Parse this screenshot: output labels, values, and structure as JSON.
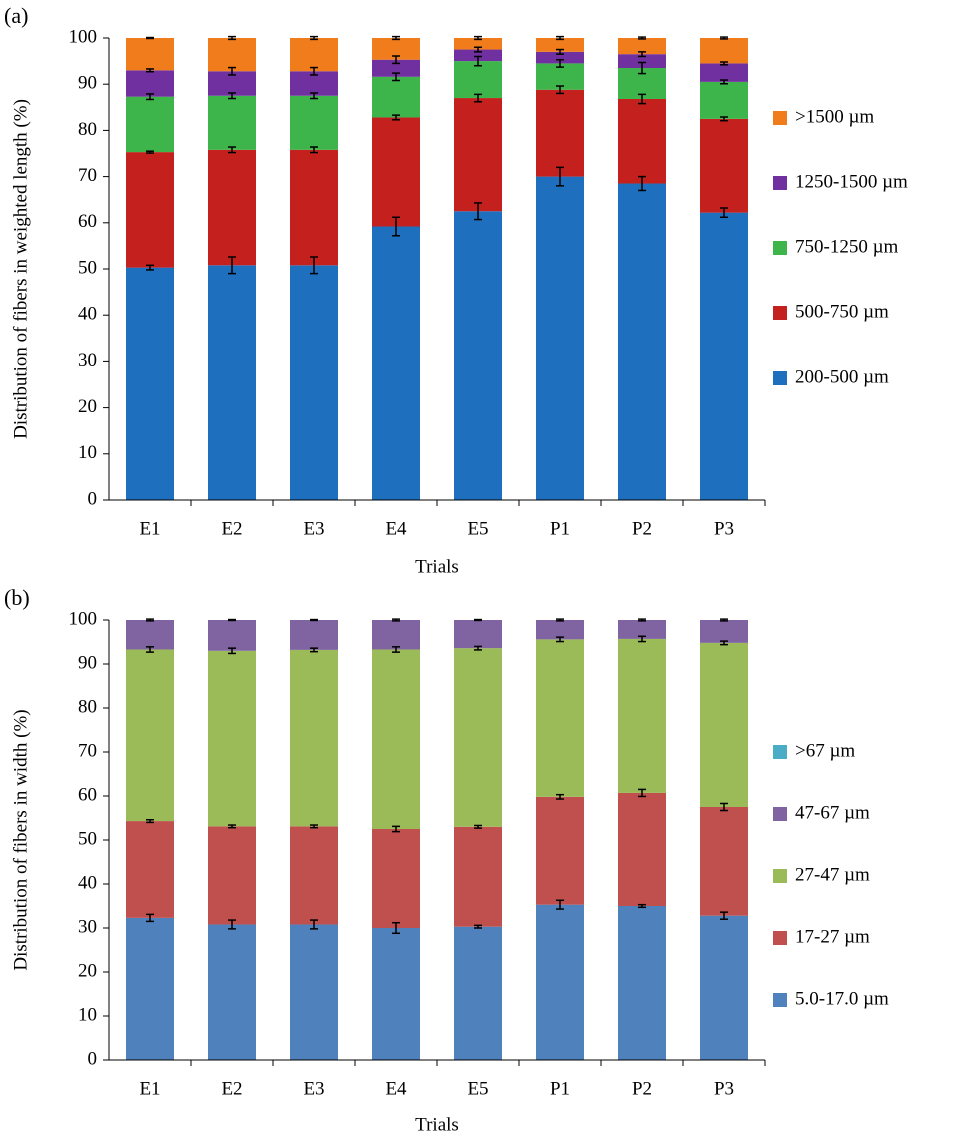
{
  "chart_data": [
    {
      "type": "bar",
      "stacked": true,
      "label": "(a)",
      "ylabel": "Distribution  of fibers in  weighted length (%)",
      "xlabel": "Trials",
      "categories": [
        "E1",
        "E2",
        "E3",
        "E4",
        "E5",
        "P1",
        "P2",
        "P3"
      ],
      "ylim": [
        0,
        100
      ],
      "yticks": [
        0,
        10,
        20,
        30,
        40,
        50,
        60,
        70,
        80,
        90,
        100
      ],
      "series": [
        {
          "name": "200-500 µm",
          "color": "#1f6fbf",
          "values": [
            50.3,
            50.8,
            50.8,
            59.2,
            62.5,
            70.0,
            68.5,
            62.2
          ],
          "errors": [
            0.5,
            1.8,
            1.8,
            2.0,
            1.8,
            2.0,
            1.5,
            1.0
          ]
        },
        {
          "name": "500-750 µm",
          "color": "#c4201e",
          "values": [
            25.0,
            25.0,
            25.0,
            23.6,
            24.5,
            18.8,
            18.3,
            20.3
          ],
          "errors": [
            0.2,
            0.6,
            0.6,
            0.5,
            0.8,
            0.8,
            1.0,
            0.4
          ]
        },
        {
          "name": "750-1250 µm",
          "color": "#3db54a",
          "values": [
            12.0,
            11.7,
            11.7,
            8.8,
            8.0,
            5.7,
            6.7,
            8.0
          ],
          "errors": [
            0.6,
            0.6,
            0.6,
            0.8,
            1.0,
            0.8,
            1.2,
            0.4
          ]
        },
        {
          "name": "1250-1500 µm",
          "color": "#7030a0",
          "values": [
            5.7,
            5.3,
            5.3,
            3.7,
            2.5,
            2.5,
            3.0,
            4.0
          ],
          "errors": [
            0.3,
            0.8,
            0.8,
            0.8,
            0.5,
            0.5,
            0.5,
            0.3
          ]
        },
        {
          "name": ">1500 µm",
          "color": "#f07c1c",
          "values": [
            7.0,
            7.2,
            7.2,
            4.7,
            2.5,
            3.0,
            3.5,
            5.5
          ],
          "errors": [
            0.1,
            0.3,
            0.3,
            0.3,
            0.3,
            0.3,
            0.2,
            0.2
          ]
        }
      ]
    },
    {
      "type": "bar",
      "stacked": true,
      "label": "(b)",
      "ylabel": "Distribution  of fibers in  width (%)",
      "xlabel": "Trials",
      "categories": [
        "E1",
        "E2",
        "E3",
        "E4",
        "E5",
        "P1",
        "P2",
        "P3"
      ],
      "ylim": [
        0,
        100
      ],
      "yticks": [
        0,
        10,
        20,
        30,
        40,
        50,
        60,
        70,
        80,
        90,
        100
      ],
      "series": [
        {
          "name": "5.0-17.0 µm",
          "color": "#4f81bd",
          "values": [
            32.3,
            30.8,
            30.8,
            30.0,
            30.3,
            35.3,
            35.0,
            32.8
          ],
          "errors": [
            0.8,
            1.0,
            1.0,
            1.2,
            0.3,
            1.0,
            0.3,
            0.8
          ]
        },
        {
          "name": "17-27 µm",
          "color": "#c0504d",
          "values": [
            22.0,
            22.3,
            22.3,
            22.5,
            22.7,
            24.5,
            25.7,
            24.7
          ],
          "errors": [
            0.3,
            0.3,
            0.3,
            0.6,
            0.3,
            0.5,
            0.8,
            0.8
          ]
        },
        {
          "name": "27-47 µm",
          "color": "#9bbb59",
          "values": [
            39.0,
            39.9,
            40.1,
            40.8,
            40.6,
            35.8,
            35.0,
            37.3
          ],
          "errors": [
            0.6,
            0.6,
            0.4,
            0.6,
            0.4,
            0.5,
            0.6,
            0.4
          ]
        },
        {
          "name": "47-67 µm",
          "color": "#8064a2",
          "values": [
            6.7,
            7.0,
            6.8,
            6.7,
            6.4,
            4.4,
            4.3,
            5.2
          ],
          "errors": [
            0.2,
            0.1,
            0.1,
            0.2,
            0.1,
            0.2,
            0.2,
            0.2
          ]
        },
        {
          "name": ">67 µm",
          "color": "#4bacc6",
          "values": [
            0,
            0,
            0,
            0,
            0,
            0,
            0,
            0
          ]
        }
      ]
    }
  ]
}
